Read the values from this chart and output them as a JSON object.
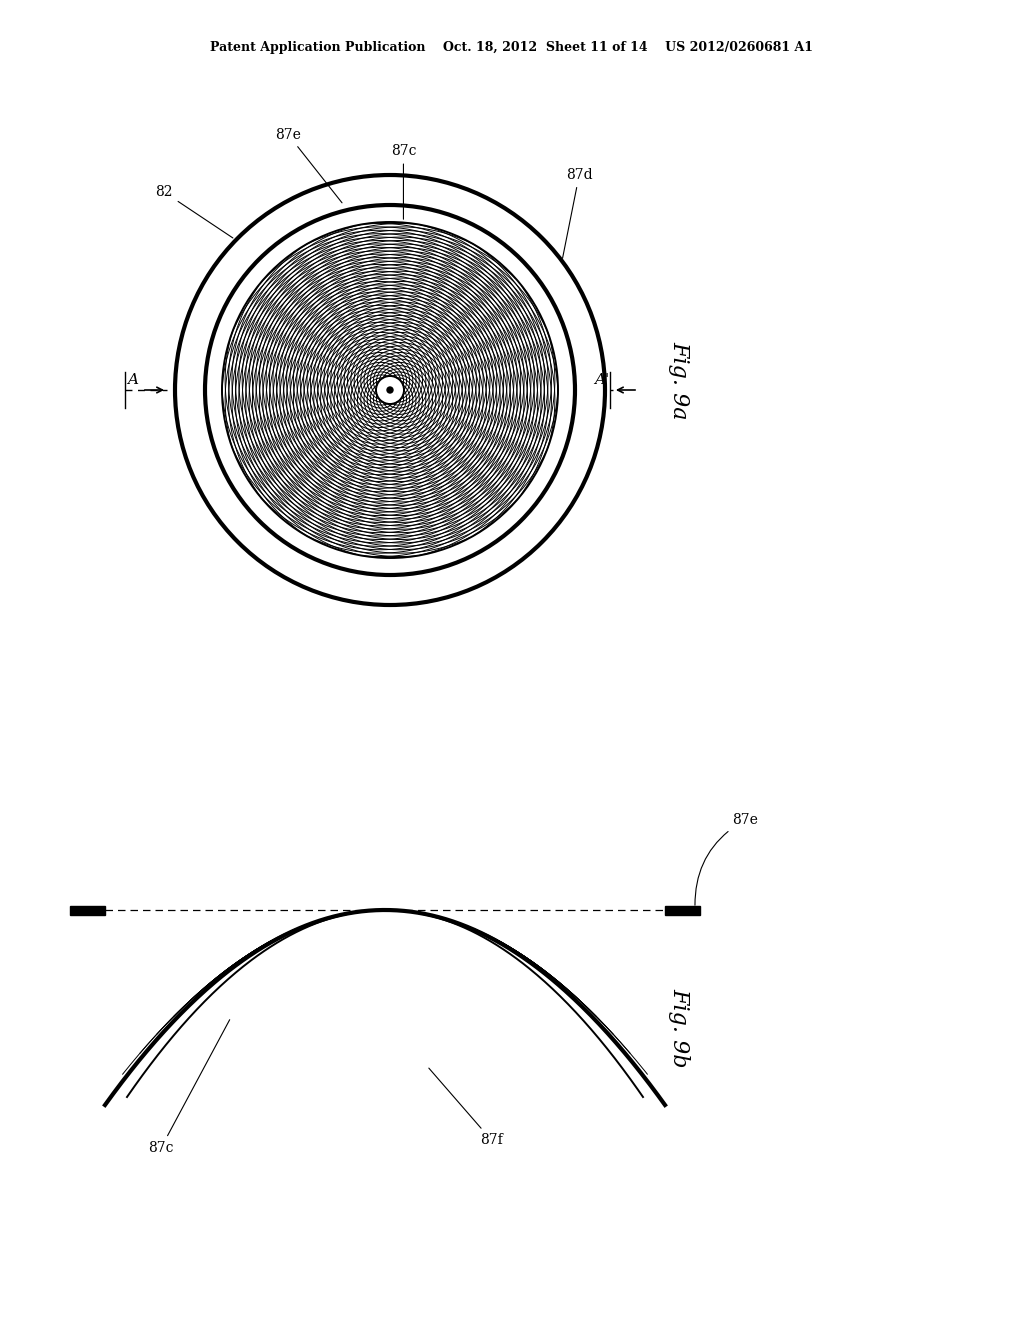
{
  "bg_color": "#ffffff",
  "line_color": "#000000",
  "header": "Patent Application Publication    Oct. 18, 2012  Sheet 11 of 14    US 2012/0260681 A1",
  "fig9a_label": "Fig. 9a",
  "fig9b_label": "Fig. 9b",
  "cx9a": 390,
  "cy9a": 390,
  "R_outer": 215,
  "R_inner": 185,
  "R_grid": 168,
  "R_center": 14,
  "cx9b": 385,
  "cy9b": 910,
  "bowl_hw": 280,
  "bowl_depth": 195
}
